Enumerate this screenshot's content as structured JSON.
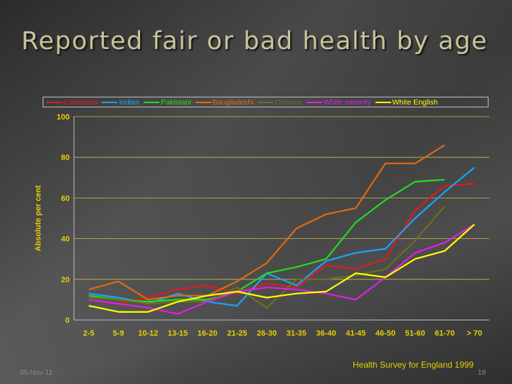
{
  "slide": {
    "title": "Reported fair or bad health by age",
    "date": "05-Nov-11",
    "page_number": "19",
    "source": "Health Survey for England 1999"
  },
  "chart_data": {
    "type": "line",
    "ylabel": "Absolute per cent",
    "ylim": [
      0,
      100
    ],
    "yticks": [
      0,
      20,
      40,
      60,
      80,
      100
    ],
    "grid": true,
    "legend_position": "top",
    "categories": [
      "2-5",
      "5-9",
      "10-12",
      "13-15",
      "16-20",
      "21-25",
      "26-30",
      "31-35",
      "36-40",
      "41-45",
      "46-50",
      "51-60",
      "61-70",
      "> 70"
    ],
    "series": [
      {
        "name": "Caribbean",
        "color": "#e01b1b",
        "values": [
          10,
          8,
          11,
          15,
          17,
          13,
          18,
          16,
          27,
          25,
          30,
          54,
          66,
          67
        ]
      },
      {
        "name": "Indian",
        "color": "#1aa3ff",
        "values": [
          13,
          11,
          8,
          13,
          9,
          7,
          23,
          17,
          29,
          33,
          35,
          50,
          63,
          75
        ]
      },
      {
        "name": "Pakistani",
        "color": "#22dd22",
        "values": [
          12,
          10,
          9,
          10,
          10,
          14,
          23,
          26,
          30,
          48,
          59,
          68,
          69,
          null
        ]
      },
      {
        "name": "Bangladeshi",
        "color": "#e06a10",
        "values": [
          15,
          19,
          10,
          12,
          12,
          19,
          28,
          45,
          52,
          55,
          77,
          77,
          86,
          null
        ]
      },
      {
        "name": "Chinese",
        "color": "#6e6e1e",
        "values": [
          11,
          10,
          8,
          9,
          9,
          16,
          6,
          20,
          20,
          22,
          25,
          39,
          56,
          null
        ]
      },
      {
        "name": "White minority",
        "color": "#e020e0",
        "values": [
          10,
          8,
          6,
          3,
          9,
          14,
          16,
          15,
          13,
          10,
          21,
          33,
          38,
          47
        ]
      },
      {
        "name": "White English",
        "color": "#ffff00",
        "values": [
          7,
          4,
          4,
          9,
          12,
          14,
          11,
          13,
          14,
          23,
          21,
          30,
          34,
          47
        ]
      }
    ]
  }
}
